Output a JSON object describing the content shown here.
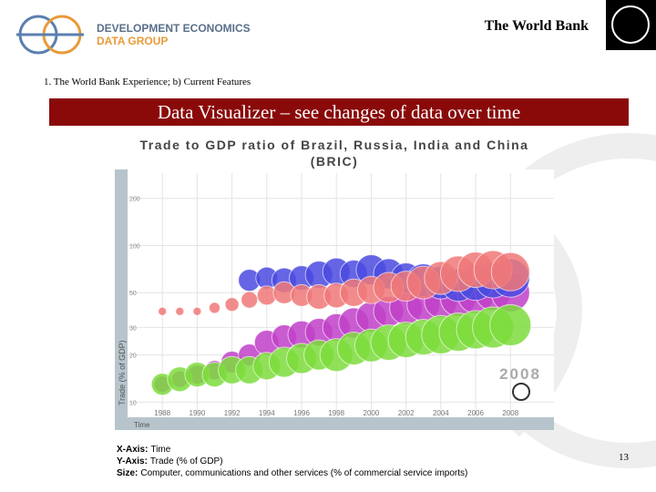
{
  "header": {
    "logo_line1": "DEVELOPMENT ECONOMICS",
    "logo_line2": "DATA GROUP",
    "org": "The World Bank",
    "breadcrumb": "1.  The World Bank Experience; b) Current Features",
    "banner": "Data Visualizer – see changes of data over time"
  },
  "chart_data": {
    "type": "bubble",
    "title": "Trade to GDP ratio of Brazil, Russia, India and China (BRIC)",
    "xlabel": "Time",
    "ylabel": "Trade (% of GDP)",
    "annotation": "2008",
    "log_y": true,
    "x": [
      1988,
      1989,
      1990,
      1991,
      1992,
      1993,
      1994,
      1995,
      1996,
      1997,
      1998,
      1999,
      2000,
      2001,
      2002,
      2003,
      2004,
      2005,
      2006,
      2007,
      2008
    ],
    "xlim": [
      1986,
      2010.5
    ],
    "xticks": [
      1988,
      1990,
      1992,
      1994,
      1996,
      1998,
      2000,
      2002,
      2004,
      2006,
      2008
    ],
    "ylim": [
      8,
      290
    ],
    "yticks": [
      10,
      20,
      30,
      50,
      100,
      200
    ],
    "series": [
      {
        "color": "#c040c8",
        "values": [
          13,
          14,
          15,
          16,
          18,
          20,
          24,
          26,
          27,
          28,
          30,
          32,
          35,
          38,
          40,
          42,
          44,
          46,
          48,
          50,
          50
        ],
        "sizes": [
          4,
          4,
          5,
          5,
          6,
          6,
          7,
          7,
          8,
          8,
          8,
          9,
          9,
          9,
          10,
          10,
          10,
          11,
          11,
          11,
          12
        ]
      },
      {
        "color": "#4a4ae0",
        "values": [
          null,
          null,
          null,
          null,
          null,
          60,
          62,
          60,
          62,
          65,
          68,
          66,
          70,
          66,
          62,
          60,
          58,
          56,
          58,
          60,
          62
        ],
        "sizes": [
          null,
          null,
          null,
          null,
          null,
          6,
          6,
          7,
          7,
          8,
          8,
          8,
          9,
          9,
          9,
          10,
          10,
          10,
          11,
          11,
          12
        ]
      },
      {
        "color": "#f07878",
        "values": [
          38,
          38,
          38,
          40,
          42,
          45,
          48,
          50,
          48,
          47,
          48,
          50,
          52,
          54,
          55,
          58,
          62,
          66,
          70,
          70,
          68
        ],
        "sizes": [
          1,
          1,
          1,
          2,
          3,
          4,
          5,
          6,
          6,
          7,
          7,
          8,
          8,
          9,
          9,
          10,
          10,
          11,
          11,
          12,
          12
        ]
      },
      {
        "color": "#7cdc3c",
        "values": [
          13,
          14,
          15,
          15,
          16,
          16,
          17,
          18,
          19,
          20,
          20,
          22,
          23,
          24,
          25,
          26,
          27,
          28,
          29,
          30,
          31
        ],
        "sizes": [
          6,
          7,
          7,
          7,
          8,
          8,
          8,
          9,
          9,
          9,
          10,
          10,
          10,
          11,
          11,
          11,
          12,
          12,
          12,
          13,
          13
        ]
      }
    ]
  },
  "footer": {
    "x_axis_label": "X-Axis:",
    "x_axis_text": "Time",
    "y_axis_label": "Y-Axis:",
    "y_axis_text": "Trade (% of GDP)",
    "size_label": "Size:",
    "size_text": "Computer, communications and other services (% of commercial service imports)",
    "page": "13"
  }
}
